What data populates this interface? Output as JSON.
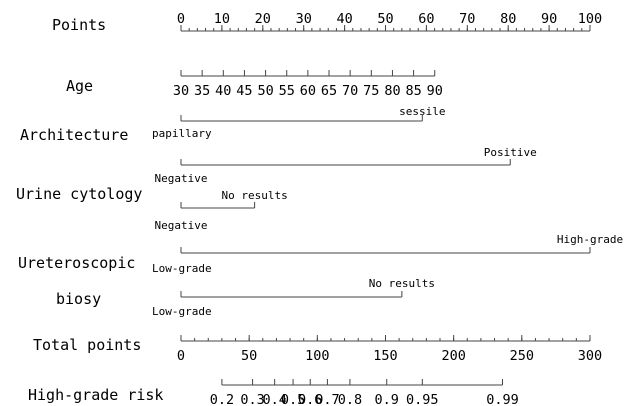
{
  "chart_data": {
    "type": "nomogram",
    "points_range": [
      0,
      100
    ],
    "rows": [
      {
        "id": "points",
        "label": "Points",
        "kind": "axis",
        "ticks": [
          {
            "label": "0",
            "points": 0
          },
          {
            "label": "10",
            "points": 10
          },
          {
            "label": "20",
            "points": 20
          },
          {
            "label": "30",
            "points": 30
          },
          {
            "label": "40",
            "points": 40
          },
          {
            "label": "50",
            "points": 50
          },
          {
            "label": "60",
            "points": 60
          },
          {
            "label": "70",
            "points": 70
          },
          {
            "label": "80",
            "points": 80
          },
          {
            "label": "90",
            "points": 90
          },
          {
            "label": "100",
            "points": 100
          }
        ],
        "minor_step": 2
      },
      {
        "id": "age",
        "label": "Age",
        "kind": "axis",
        "ticks": [
          {
            "label": "30",
            "points": 0
          },
          {
            "label": "35",
            "points": 5.17
          },
          {
            "label": "40",
            "points": 10.34
          },
          {
            "label": "45",
            "points": 15.51
          },
          {
            "label": "50",
            "points": 20.68
          },
          {
            "label": "55",
            "points": 25.85
          },
          {
            "label": "60",
            "points": 31.02
          },
          {
            "label": "65",
            "points": 36.19
          },
          {
            "label": "70",
            "points": 41.36
          },
          {
            "label": "75",
            "points": 46.53
          },
          {
            "label": "80",
            "points": 51.7
          },
          {
            "label": "85",
            "points": 56.87
          },
          {
            "label": "90",
            "points": 62.04
          }
        ]
      },
      {
        "id": "architecture",
        "label": "Architecture",
        "kind": "categorical",
        "levels": [
          {
            "label": "papillary",
            "points": 0,
            "side": "below"
          },
          {
            "label": "sessile",
            "points": 59,
            "side": "above"
          }
        ]
      },
      {
        "id": "urine-cytology",
        "label": "Urine cytology",
        "kind": "categorical",
        "levels": [
          {
            "label": "Negative",
            "points": 0,
            "side": "below"
          },
          {
            "label": "Positive",
            "points": 80.5,
            "side": "above"
          }
        ]
      },
      {
        "id": "urine-cytology-nr",
        "label": "",
        "kind": "categorical",
        "levels": [
          {
            "label": "Negative",
            "points": 0,
            "side": "below"
          },
          {
            "label": "No results",
            "points": 18,
            "side": "above"
          }
        ]
      },
      {
        "id": "ureteroscopic",
        "label": "Ureteroscopic",
        "kind": "categorical",
        "levels": [
          {
            "label": "Low-grade",
            "points": 0,
            "side": "below"
          },
          {
            "label": "High-grade",
            "points": 100,
            "side": "above"
          }
        ]
      },
      {
        "id": "biosy",
        "label": "biosy",
        "kind": "categorical",
        "levels": [
          {
            "label": "Low-grade",
            "points": 0,
            "side": "below"
          },
          {
            "label": "No results",
            "points": 54,
            "side": "above"
          }
        ]
      },
      {
        "id": "total-points",
        "label": "Total points",
        "kind": "axis",
        "ticks": [
          {
            "label": "0",
            "points": 0
          },
          {
            "label": "50",
            "points": 16.67
          },
          {
            "label": "100",
            "points": 33.33
          },
          {
            "label": "150",
            "points": 50
          },
          {
            "label": "200",
            "points": 66.67
          },
          {
            "label": "250",
            "points": 83.33
          },
          {
            "label": "300",
            "points": 100
          }
        ],
        "minor_step": 3.333
      },
      {
        "id": "high-grade-risk",
        "label": "High-grade risk",
        "kind": "axis",
        "ticks": [
          {
            "label": "0.2",
            "points": 10
          },
          {
            "label": "0.3",
            "points": 17.5
          },
          {
            "label": "0.4",
            "points": 22.9
          },
          {
            "label": "0.5",
            "points": 27.4
          },
          {
            "label": "0.6",
            "points": 31.6
          },
          {
            "label": "0.7",
            "points": 35.8
          },
          {
            "label": "0.8",
            "points": 41.3
          },
          {
            "label": "0.9",
            "points": 50.3
          },
          {
            "label": "0.95",
            "points": 59
          },
          {
            "label": "0.99",
            "points": 78.6
          }
        ]
      }
    ]
  }
}
